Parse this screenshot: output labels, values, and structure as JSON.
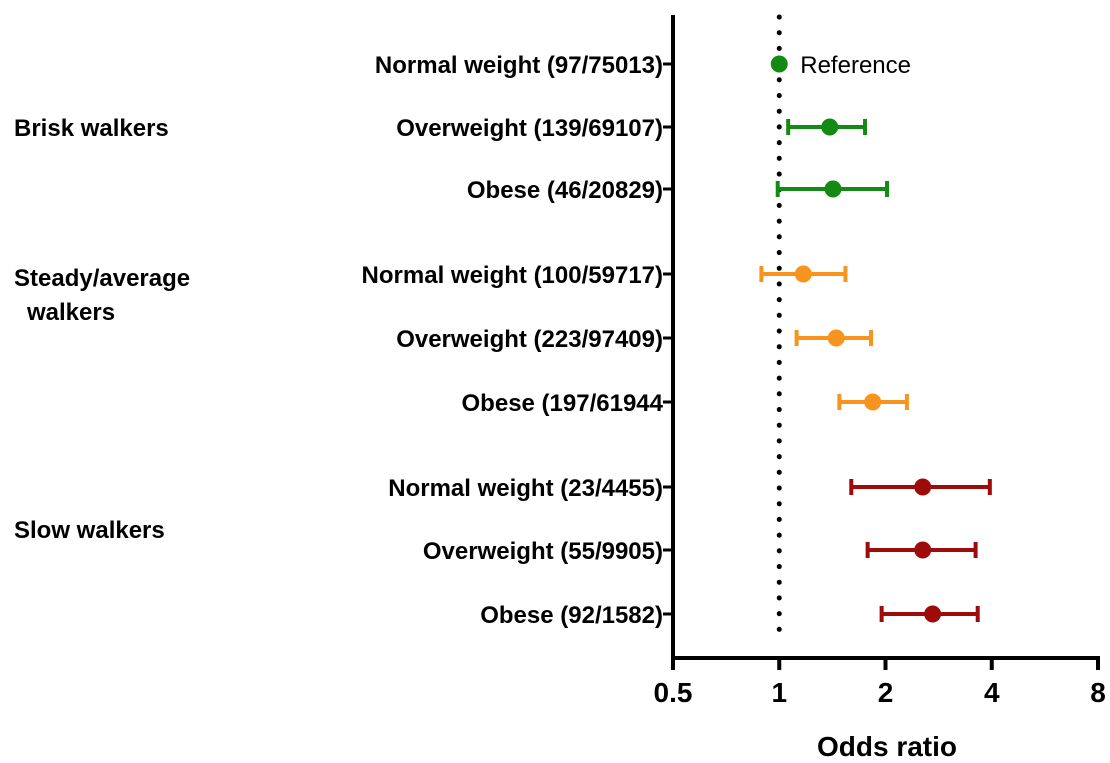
{
  "chart_data": {
    "type": "scatter",
    "xlabel": "Odds ratio",
    "xscale": "log2",
    "xlim": [
      0.5,
      8
    ],
    "x_ticks": [
      0.5,
      1,
      2,
      4,
      8
    ],
    "x_tick_labels": [
      "0.5",
      "1",
      "2",
      "4",
      "8"
    ],
    "reference_line": 1,
    "groups": [
      {
        "name": "Brisk walkers",
        "color": "#138a13",
        "rows": [
          {
            "label": "Normal weight (97/75013)",
            "or": 1.0,
            "lo": null,
            "hi": null,
            "annotation": "Reference"
          },
          {
            "label": "Overweight (139/69107)",
            "or": 1.39,
            "lo": 1.06,
            "hi": 1.75
          },
          {
            "label": "Obese (46/20829)",
            "or": 1.42,
            "lo": 0.99,
            "hi": 2.02
          }
        ]
      },
      {
        "name": "Steady/average walkers",
        "color": "#f7941d",
        "rows": [
          {
            "label": "Normal weight (100/59717)",
            "or": 1.17,
            "lo": 0.89,
            "hi": 1.54
          },
          {
            "label": "Overweight (223/97409)",
            "or": 1.45,
            "lo": 1.12,
            "hi": 1.82
          },
          {
            "label": "Obese (197/61944",
            "or": 1.84,
            "lo": 1.48,
            "hi": 2.3
          }
        ]
      },
      {
        "name": "Slow walkers",
        "color": "#9e0b0b",
        "rows": [
          {
            "label": "Normal weight (23/4455)",
            "or": 2.55,
            "lo": 1.6,
            "hi": 3.95
          },
          {
            "label": "Overweight (55/9905)",
            "or": 2.55,
            "lo": 1.78,
            "hi": 3.6
          },
          {
            "label": "Obese (92/1582)",
            "or": 2.72,
            "lo": 1.95,
            "hi": 3.65
          }
        ]
      }
    ]
  }
}
